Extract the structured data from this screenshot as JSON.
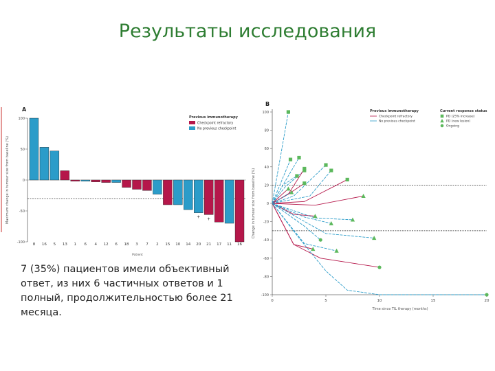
{
  "slide": {
    "title": "Результаты исследования",
    "caption": "7 (35%) пациентов имели объективный ответ, из них 6 частичных ответов и 1 полный, продолжительностью более 21 месяца."
  },
  "colors": {
    "checkpoint": "#b5174a",
    "no_checkpoint": "#2b9cc9",
    "marker": "#5cb85c"
  },
  "chart_data": [
    {
      "type": "bar",
      "panel_label": "A",
      "ylabel": "Maximum change in tumour size from baseline (%)",
      "xlabel": "Patient",
      "ylim": [
        -100,
        100
      ],
      "yticks": [
        100,
        50,
        0,
        -50,
        -100
      ],
      "threshold_lines": [
        -30
      ],
      "legend": {
        "title": "Previous immunotherapy",
        "entries": [
          "Checkpoint refractory",
          "No previous checkpoint"
        ],
        "position": "top-right"
      },
      "categories": [
        "8",
        "16",
        "5",
        "13",
        "1",
        "6",
        "4",
        "12",
        "6",
        "18",
        "3",
        "7",
        "2",
        "15",
        "10",
        "14",
        "20",
        "21",
        "17",
        "11",
        "16"
      ],
      "values": [
        100,
        53,
        47,
        15,
        -2,
        -2,
        -3,
        -4,
        -4,
        -12,
        -15,
        -17,
        -23,
        -40,
        -40,
        -48,
        -53,
        -56,
        -68,
        -70,
        -100
      ],
      "groups": [
        "no",
        "no",
        "no",
        "cp",
        "cp",
        "no",
        "cp",
        "cp",
        "no",
        "cp",
        "cp",
        "cp",
        "no",
        "cp",
        "no",
        "no",
        "no",
        "cp",
        "cp",
        "no",
        "cp"
      ],
      "annotations": [
        {
          "index": 16,
          "text": "+"
        },
        {
          "index": 17,
          "text": "+"
        }
      ]
    },
    {
      "type": "line",
      "panel_label": "B",
      "ylabel": "Change in tumour size from baseline (%)",
      "xlabel": "Time since TIL therapy (months)",
      "ylim": [
        -100,
        100
      ],
      "yticks": [
        100,
        80,
        60,
        40,
        20,
        0,
        -20,
        -40,
        -60,
        -80,
        -100
      ],
      "xlim": [
        0,
        20
      ],
      "xticks": [
        0,
        5,
        10,
        15,
        20
      ],
      "threshold_lines": [
        20,
        -30
      ],
      "legend": {
        "line_title": "Previous immunotherapy",
        "line_entries": [
          "Checkpoint refractory",
          "No previous checkpoint"
        ],
        "status_title": "Current response status",
        "status_entries": [
          "PD (25% increase)",
          "PD (new lesion)",
          "Ongoing"
        ],
        "position": "top-right"
      },
      "series": [
        {
          "group": "no",
          "marker": "square",
          "x": [
            0,
            1.5
          ],
          "y": [
            0,
            100
          ]
        },
        {
          "group": "no",
          "marker": "square",
          "x": [
            0,
            2.5
          ],
          "y": [
            0,
            50
          ]
        },
        {
          "group": "no",
          "marker": "square",
          "x": [
            0,
            1.7
          ],
          "y": [
            0,
            48
          ]
        },
        {
          "group": "no",
          "marker": "square",
          "x": [
            0,
            1.0,
            2.3
          ],
          "y": [
            0,
            20,
            30
          ]
        },
        {
          "group": "no",
          "marker": "square",
          "x": [
            0,
            1.2,
            3.0
          ],
          "y": [
            0,
            18,
            36
          ]
        },
        {
          "group": "cp",
          "marker": "square",
          "x": [
            0,
            1.5,
            3.0
          ],
          "y": [
            0,
            10,
            38
          ]
        },
        {
          "group": "no",
          "marker": "square",
          "x": [
            0,
            2.0,
            5.0
          ],
          "y": [
            0,
            8,
            42
          ]
        },
        {
          "group": "cp",
          "marker": "square",
          "x": [
            0,
            2.0,
            3.0
          ],
          "y": [
            0,
            14,
            22
          ]
        },
        {
          "group": "no",
          "marker": "square",
          "x": [
            0,
            3.5,
            5.5
          ],
          "y": [
            0,
            8,
            36
          ]
        },
        {
          "group": "cp",
          "marker": "square",
          "x": [
            0,
            3.0,
            7.0
          ],
          "y": [
            0,
            2,
            26
          ]
        },
        {
          "group": "cp",
          "marker": "triangle",
          "x": [
            0,
            1.5
          ],
          "y": [
            0,
            16
          ]
        },
        {
          "group": "no",
          "marker": "triangle",
          "x": [
            0,
            1.8
          ],
          "y": [
            0,
            12
          ]
        },
        {
          "group": "cp",
          "marker": "triangle",
          "x": [
            0,
            4.0,
            8.5
          ],
          "y": [
            0,
            -2,
            8
          ]
        },
        {
          "group": "cp",
          "marker": "triangle",
          "x": [
            0,
            2.0,
            4.0
          ],
          "y": [
            0,
            -12,
            -14
          ]
        },
        {
          "group": "no",
          "marker": "triangle",
          "x": [
            0,
            3.0,
            5.5
          ],
          "y": [
            0,
            -15,
            -22
          ]
        },
        {
          "group": "no",
          "marker": "triangle",
          "x": [
            0,
            4.0,
            7.5
          ],
          "y": [
            0,
            -16,
            -18
          ]
        },
        {
          "group": "no",
          "marker": "triangle",
          "x": [
            0,
            5.0,
            9.5
          ],
          "y": [
            0,
            -33,
            -38
          ]
        },
        {
          "group": "cp",
          "marker": "triangle",
          "x": [
            0,
            2.0,
            3.8
          ],
          "y": [
            0,
            -45,
            -50
          ]
        },
        {
          "group": "no",
          "marker": "triangle",
          "x": [
            0,
            3.0,
            6.0
          ],
          "y": [
            0,
            -44,
            -52
          ]
        },
        {
          "group": "no",
          "marker": "ongoing",
          "x": [
            0,
            3.0,
            4.5
          ],
          "y": [
            0,
            -25,
            -40
          ]
        },
        {
          "group": "cp",
          "marker": "ongoing",
          "x": [
            0,
            2.0,
            4.5,
            10.0
          ],
          "y": [
            0,
            -45,
            -60,
            -70
          ]
        },
        {
          "group": "no",
          "marker": "ongoing",
          "x": [
            0,
            2.5,
            5.0,
            7.0,
            10.0,
            20.0
          ],
          "y": [
            0,
            -38,
            -74,
            -95,
            -100,
            -100
          ]
        }
      ]
    }
  ]
}
